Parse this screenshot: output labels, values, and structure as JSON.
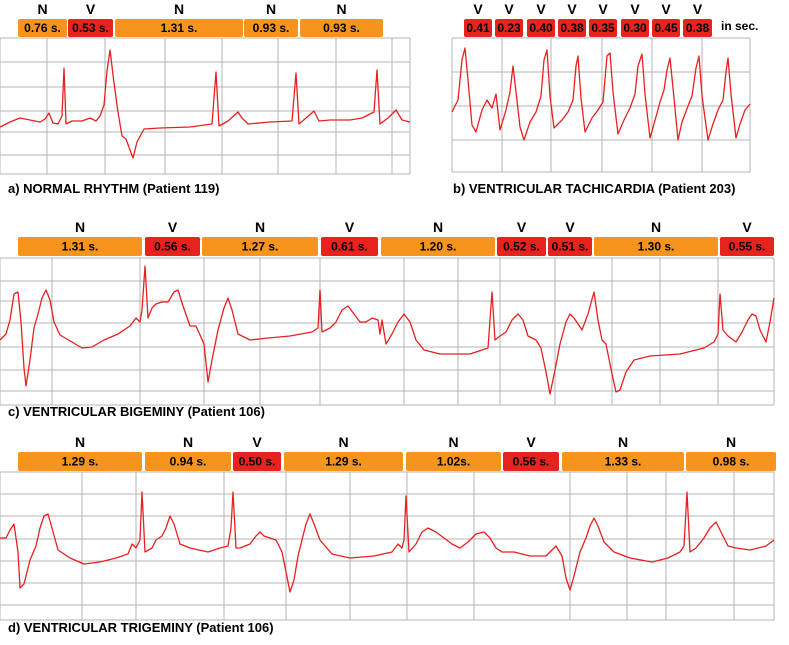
{
  "colors": {
    "normal_box": "#f7941d",
    "ventricular_box": "#e8231d",
    "trace": "#e82020",
    "grid": "#b4b4b4"
  },
  "panels": [
    {
      "id": "a",
      "caption": "a) NORMAL RHYTHM (Patient 119)",
      "beats": [
        {
          "type": "N",
          "interval": "0.76 s."
        },
        {
          "type": "V",
          "interval": "0.53 s."
        },
        {
          "type": "N",
          "interval": "1.31 s."
        },
        {
          "type": "N",
          "interval": "0.93 s."
        },
        {
          "type": "N",
          "interval": "0.93 s."
        }
      ]
    },
    {
      "id": "b",
      "caption": "b) VENTRICULAR TACHICARDIA (Patient 203)",
      "unit_note": "in sec.",
      "beats": [
        {
          "type": "V",
          "interval": "0.41"
        },
        {
          "type": "V",
          "interval": "0.23"
        },
        {
          "type": "V",
          "interval": "0.40"
        },
        {
          "type": "V",
          "interval": "0.38"
        },
        {
          "type": "V",
          "interval": "0.35"
        },
        {
          "type": "V",
          "interval": "0.30"
        },
        {
          "type": "V",
          "interval": "0.45"
        },
        {
          "type": "V",
          "interval": "0.38"
        }
      ]
    },
    {
      "id": "c",
      "caption": "c) VENTRICULAR BIGEMINY (Patient 106)",
      "beats": [
        {
          "type": "N",
          "interval": "1.31 s."
        },
        {
          "type": "V",
          "interval": "0.56 s."
        },
        {
          "type": "N",
          "interval": "1.27 s."
        },
        {
          "type": "V",
          "interval": "0.61 s."
        },
        {
          "type": "N",
          "interval": "1.20 s."
        },
        {
          "type": "V",
          "interval": "0.52 s."
        },
        {
          "type": "V",
          "interval": "0.51 s."
        },
        {
          "type": "N",
          "interval": "1.30 s."
        },
        {
          "type": "V",
          "interval": "0.55 s."
        }
      ]
    },
    {
      "id": "d",
      "caption": "d) VENTRICULAR TRIGEMINY (Patient 106)",
      "beats": [
        {
          "type": "N",
          "interval": "1.29 s."
        },
        {
          "type": "N",
          "interval": "0.94 s."
        },
        {
          "type": "V",
          "interval": "0.50 s."
        },
        {
          "type": "N",
          "interval": "1.29 s."
        },
        {
          "type": "N",
          "interval": "1.02s."
        },
        {
          "type": "V",
          "interval": "0.56 s."
        },
        {
          "type": "N",
          "interval": "1.33 s."
        },
        {
          "type": "N",
          "interval": "0.98 s."
        }
      ]
    }
  ]
}
